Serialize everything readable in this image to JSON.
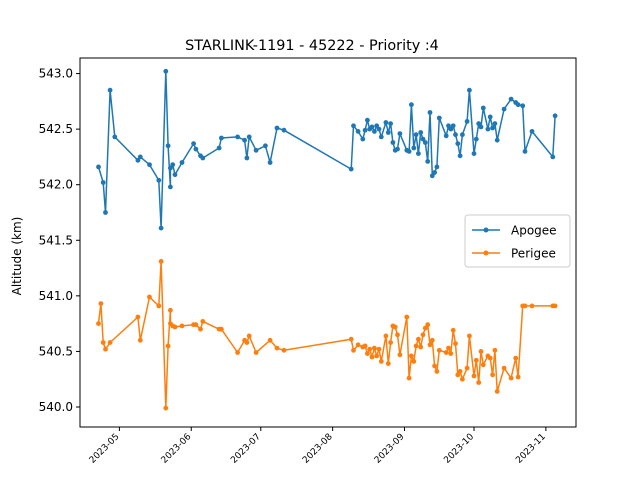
{
  "chart_data": {
    "type": "line",
    "title": "STARLINK-1191 - 45222 - Priority :4",
    "xlabel": "",
    "ylabel": "Altitude (km)",
    "xlim": [
      "2023-04-14",
      "2023-11-14"
    ],
    "ylim": [
      539.82,
      543.14
    ],
    "x_ticks": [
      "2023-05",
      "2023-06",
      "2023-07",
      "2023-08",
      "2023-09",
      "2023-10",
      "2023-11"
    ],
    "y_ticks": [
      "540.0",
      "540.5",
      "541.0",
      "541.5",
      "542.0",
      "542.5",
      "543.0"
    ],
    "grid": false,
    "legend": "center-right",
    "series": [
      {
        "name": "Apogee",
        "color": "#1f77b4",
        "x": [
          "2023-04-22",
          "2023-04-24",
          "2023-04-25",
          "2023-04-27",
          "2023-04-29",
          "2023-05-09",
          "2023-05-10",
          "2023-05-14",
          "2023-05-18",
          "2023-05-19",
          "2023-05-21",
          "2023-05-22",
          "2023-05-23",
          "2023-05-23",
          "2023-05-24",
          "2023-05-25",
          "2023-05-28",
          "2023-06-02",
          "2023-06-03",
          "2023-06-05",
          "2023-06-06",
          "2023-06-13",
          "2023-06-14",
          "2023-06-21",
          "2023-06-24",
          "2023-06-25",
          "2023-06-26",
          "2023-06-29",
          "2023-07-03",
          "2023-07-05",
          "2023-07-08",
          "2023-07-11",
          "2023-08-09",
          "2023-08-10",
          "2023-08-12",
          "2023-08-14",
          "2023-08-15",
          "2023-08-16",
          "2023-08-17",
          "2023-08-18",
          "2023-08-19",
          "2023-08-20",
          "2023-08-21",
          "2023-08-22",
          "2023-08-24",
          "2023-08-25",
          "2023-08-26",
          "2023-08-27",
          "2023-08-28",
          "2023-08-29",
          "2023-08-30",
          "2023-09-02",
          "2023-09-03",
          "2023-09-04",
          "2023-09-05",
          "2023-09-06",
          "2023-09-07",
          "2023-09-08",
          "2023-09-09",
          "2023-09-10",
          "2023-09-11",
          "2023-09-12",
          "2023-09-13",
          "2023-09-14",
          "2023-09-15",
          "2023-09-16",
          "2023-09-19",
          "2023-09-20",
          "2023-09-21",
          "2023-09-22",
          "2023-09-23",
          "2023-09-24",
          "2023-09-25",
          "2023-09-26",
          "2023-09-28",
          "2023-09-29",
          "2023-10-01",
          "2023-10-02",
          "2023-10-03",
          "2023-10-04",
          "2023-10-05",
          "2023-10-07",
          "2023-10-08",
          "2023-10-09",
          "2023-10-10",
          "2023-10-11",
          "2023-10-14",
          "2023-10-17",
          "2023-10-19",
          "2023-10-20",
          "2023-10-22",
          "2023-10-23",
          "2023-10-26",
          "2023-11-04",
          "2023-11-05"
        ],
        "y": [
          542.16,
          542.02,
          541.75,
          542.85,
          542.43,
          542.22,
          542.25,
          542.18,
          542.04,
          541.61,
          543.02,
          542.35,
          541.98,
          542.15,
          542.18,
          542.09,
          542.2,
          542.37,
          542.32,
          542.26,
          542.24,
          542.33,
          542.42,
          542.43,
          542.4,
          542.24,
          542.43,
          542.31,
          542.35,
          542.2,
          542.51,
          542.49,
          542.14,
          542.53,
          542.48,
          542.41,
          542.49,
          542.58,
          542.5,
          542.52,
          542.48,
          542.53,
          542.5,
          542.43,
          542.56,
          542.47,
          542.55,
          542.38,
          542.31,
          542.32,
          542.46,
          542.31,
          542.3,
          542.72,
          542.33,
          542.45,
          542.28,
          542.47,
          542.41,
          542.38,
          542.21,
          542.65,
          542.08,
          542.11,
          542.16,
          542.6,
          542.44,
          542.53,
          542.5,
          542.53,
          542.45,
          542.37,
          542.26,
          542.45,
          542.57,
          542.85,
          542.28,
          542.41,
          542.55,
          542.52,
          542.69,
          542.5,
          542.61,
          542.51,
          542.55,
          542.4,
          542.68,
          542.77,
          542.74,
          542.72,
          542.71,
          542.3,
          542.48,
          542.25,
          542.62
        ]
      },
      {
        "name": "Perigee",
        "color": "#ff7f0e",
        "x": [
          "2023-04-22",
          "2023-04-23",
          "2023-04-24",
          "2023-04-25",
          "2023-04-27",
          "2023-05-09",
          "2023-05-10",
          "2023-05-14",
          "2023-05-18",
          "2023-05-19",
          "2023-05-21",
          "2023-05-22",
          "2023-05-23",
          "2023-05-23",
          "2023-05-24",
          "2023-05-25",
          "2023-05-28",
          "2023-06-02",
          "2023-06-03",
          "2023-06-05",
          "2023-06-06",
          "2023-06-13",
          "2023-06-14",
          "2023-06-21",
          "2023-06-24",
          "2023-06-25",
          "2023-06-26",
          "2023-06-29",
          "2023-07-05",
          "2023-07-08",
          "2023-07-11",
          "2023-08-09",
          "2023-08-10",
          "2023-08-12",
          "2023-08-14",
          "2023-08-15",
          "2023-08-16",
          "2023-08-17",
          "2023-08-18",
          "2023-08-19",
          "2023-08-20",
          "2023-08-21",
          "2023-08-22",
          "2023-08-24",
          "2023-08-25",
          "2023-08-26",
          "2023-08-27",
          "2023-08-28",
          "2023-08-29",
          "2023-08-30",
          "2023-09-02",
          "2023-09-03",
          "2023-09-04",
          "2023-09-05",
          "2023-09-06",
          "2023-09-07",
          "2023-09-08",
          "2023-09-09",
          "2023-09-10",
          "2023-09-11",
          "2023-09-12",
          "2023-09-13",
          "2023-09-14",
          "2023-09-15",
          "2023-09-16",
          "2023-09-19",
          "2023-09-20",
          "2023-09-21",
          "2023-09-22",
          "2023-09-23",
          "2023-09-24",
          "2023-09-25",
          "2023-09-26",
          "2023-09-28",
          "2023-09-29",
          "2023-10-01",
          "2023-10-02",
          "2023-10-03",
          "2023-10-04",
          "2023-10-05",
          "2023-10-07",
          "2023-10-08",
          "2023-10-09",
          "2023-10-10",
          "2023-10-11",
          "2023-10-14",
          "2023-10-17",
          "2023-10-19",
          "2023-10-20",
          "2023-10-22",
          "2023-10-23",
          "2023-10-26",
          "2023-11-04",
          "2023-11-05"
        ],
        "y": [
          540.75,
          540.93,
          540.58,
          540.52,
          540.58,
          540.81,
          540.6,
          540.99,
          540.91,
          541.31,
          539.99,
          540.55,
          540.87,
          540.75,
          540.73,
          540.72,
          540.73,
          540.74,
          540.74,
          540.7,
          540.77,
          540.7,
          540.7,
          540.49,
          540.6,
          540.58,
          540.64,
          540.49,
          540.6,
          540.53,
          540.51,
          540.61,
          540.51,
          540.56,
          540.54,
          540.55,
          540.48,
          540.52,
          540.45,
          540.53,
          540.46,
          540.52,
          540.41,
          540.64,
          540.39,
          540.58,
          540.73,
          540.72,
          540.65,
          540.47,
          540.81,
          540.26,
          540.46,
          540.41,
          540.55,
          540.61,
          540.54,
          540.65,
          540.71,
          540.74,
          540.56,
          540.6,
          540.37,
          540.32,
          540.51,
          540.49,
          540.53,
          540.48,
          540.69,
          540.57,
          540.29,
          540.32,
          540.25,
          540.35,
          540.64,
          540.28,
          540.42,
          540.22,
          540.5,
          540.38,
          540.46,
          540.44,
          540.29,
          540.51,
          540.14,
          540.35,
          540.26,
          540.44,
          540.27,
          540.91,
          540.91,
          540.91,
          540.91,
          540.91
        ]
      }
    ]
  }
}
